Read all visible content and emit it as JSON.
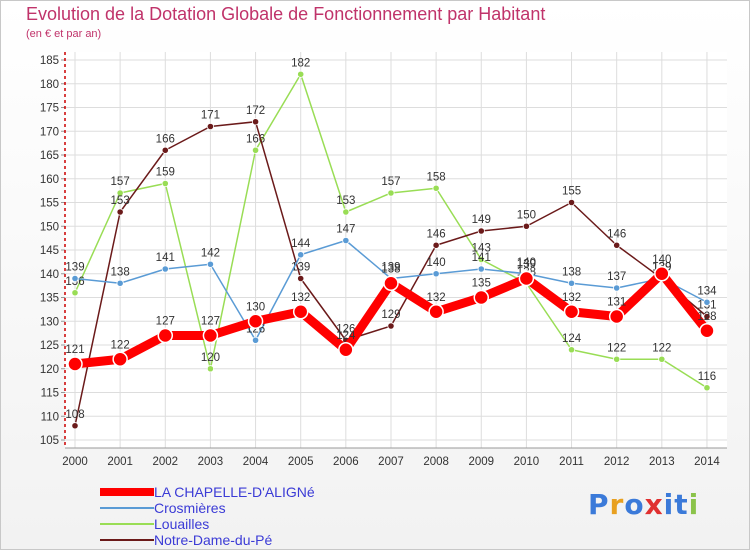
{
  "colors": {
    "title": "#c0336a",
    "chapelle": "#ff0000",
    "crosmieres": "#5a9bd5",
    "louailles": "#99dd55",
    "notredame": "#6b1a1a"
  },
  "chart_data": {
    "type": "line",
    "title": "Evolution de la Dotation Globale de Fonctionnement par Habitant",
    "subtitle": "(en € et par an)",
    "xlabel": "",
    "ylabel": "",
    "ylim": [
      105,
      185
    ],
    "y_ticks": [
      105,
      110,
      115,
      120,
      125,
      130,
      135,
      140,
      145,
      150,
      155,
      160,
      165,
      170,
      175,
      180,
      185
    ],
    "x": [
      "2000",
      "2001",
      "2002",
      "2003",
      "2004",
      "2005",
      "2006",
      "2007",
      "2008",
      "2009",
      "2010",
      "2011",
      "2012",
      "2013",
      "2014"
    ],
    "grid": true,
    "series": [
      {
        "name": "LA CHAPELLE-D'ALIGNé",
        "key": "chapelle",
        "values": [
          121,
          122,
          127,
          127,
          130,
          132,
          124,
          138,
          132,
          135,
          139,
          132,
          131,
          140,
          128
        ]
      },
      {
        "name": "Crosmières",
        "key": "crosmieres",
        "values": [
          139,
          138,
          141,
          142,
          126,
          144,
          147,
          139,
          140,
          141,
          140,
          138,
          137,
          139,
          134
        ]
      },
      {
        "name": "Louailles",
        "key": "louailles",
        "values": [
          136,
          157,
          159,
          120,
          166,
          182,
          153,
          157,
          158,
          143,
          138,
          124,
          122,
          122,
          116
        ]
      },
      {
        "name": "Notre-Dame-du-Pé",
        "key": "notredame",
        "values": [
          108,
          153,
          166,
          171,
          172,
          139,
          126,
          129,
          146,
          149,
          150,
          155,
          146,
          139,
          131
        ]
      }
    ]
  },
  "logo": {
    "text": "Proxiti"
  }
}
